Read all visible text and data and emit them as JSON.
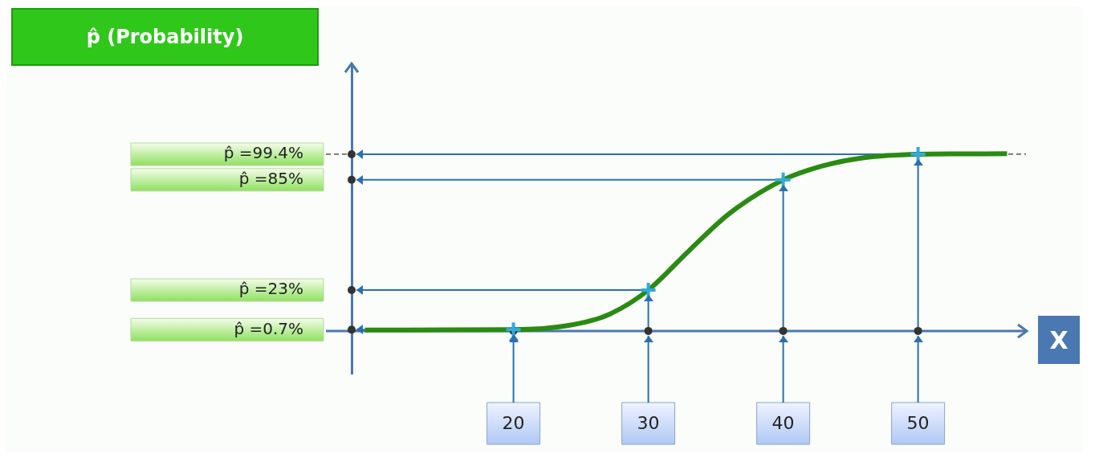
{
  "chart_data": {
    "type": "line",
    "ylabel": "p̂ (Probability)",
    "xlabel": "X",
    "xlim": [
      8,
      58
    ],
    "xticks": [
      20,
      30,
      40,
      50
    ],
    "ylim": [
      -24,
      150
    ],
    "yticks": [
      {
        "value": 0.7,
        "label": "p̂ =0.7%"
      },
      {
        "value": 23,
        "label": "p̂ =23%"
      },
      {
        "value": 85,
        "label": "p̂ =85%"
      },
      {
        "value": 99.4,
        "label": "p̂ =99.4%"
      }
    ],
    "grid": true,
    "legend": false,
    "series": [
      {
        "color": "#2a8a12",
        "marker": "none",
        "x": [
          9,
          15,
          20,
          24,
          27,
          30,
          33,
          36,
          40,
          43,
          46,
          50,
          53,
          56.6
        ],
        "values": [
          0.5,
          0.6,
          0.7,
          3,
          9,
          23,
          45,
          66,
          85,
          93,
          97.5,
          99.4,
          99.6,
          99.7
        ]
      },
      {
        "type": "scatter",
        "color": "#33aadd",
        "marker": "cross",
        "x": [
          20,
          30,
          40,
          50
        ],
        "values": [
          0.7,
          23,
          85,
          99.4
        ]
      },
      {
        "type": "scatter",
        "color": "#333333",
        "marker": "circle",
        "x": [
          20,
          30,
          40,
          50
        ],
        "values": [
          0,
          0,
          0,
          0
        ]
      },
      {
        "type": "scatter",
        "color": "#333333",
        "marker": "circle",
        "x": [
          8,
          8,
          8,
          8
        ],
        "values": [
          0.7,
          23,
          85,
          99.4
        ]
      }
    ],
    "ref_lines": [
      {
        "axis": "y",
        "value": 99.4,
        "line_style": "dashed",
        "color": "#333333"
      },
      {
        "axis": "y",
        "value": 0,
        "line_style": "solid",
        "color": "#4a78b0"
      }
    ]
  }
}
